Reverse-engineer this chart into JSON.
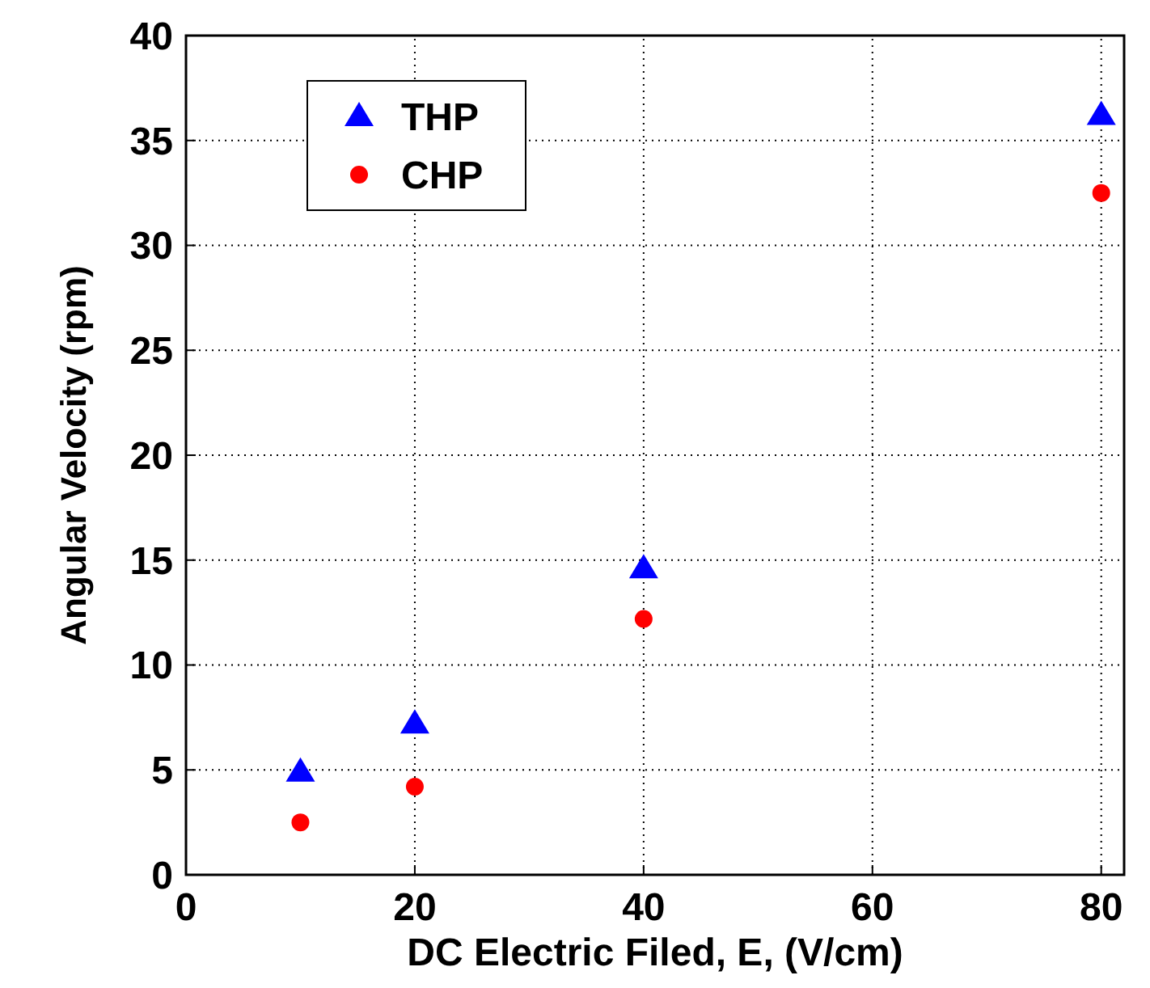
{
  "chart_data": {
    "type": "scatter",
    "xlabel": "DC Electric Filed, E, (V/cm)",
    "ylabel": "Angular Velocity (rpm)",
    "xlim": [
      0,
      82
    ],
    "ylim": [
      0,
      40
    ],
    "xticks": [
      0,
      20,
      40,
      60,
      80
    ],
    "yticks": [
      0,
      5,
      10,
      15,
      20,
      25,
      30,
      35,
      40
    ],
    "grid": true,
    "legend": "top left",
    "series": [
      {
        "name": "THP",
        "color": "#0000ff",
        "marker": "triangle",
        "x": [
          10,
          20,
          40,
          80
        ],
        "values": [
          4.9,
          7.2,
          14.6,
          36.2
        ]
      },
      {
        "name": "CHP",
        "color": "#ff0000",
        "marker": "circle",
        "x": [
          10,
          20,
          40,
          80
        ],
        "values": [
          2.5,
          4.2,
          12.2,
          32.5
        ]
      }
    ]
  }
}
